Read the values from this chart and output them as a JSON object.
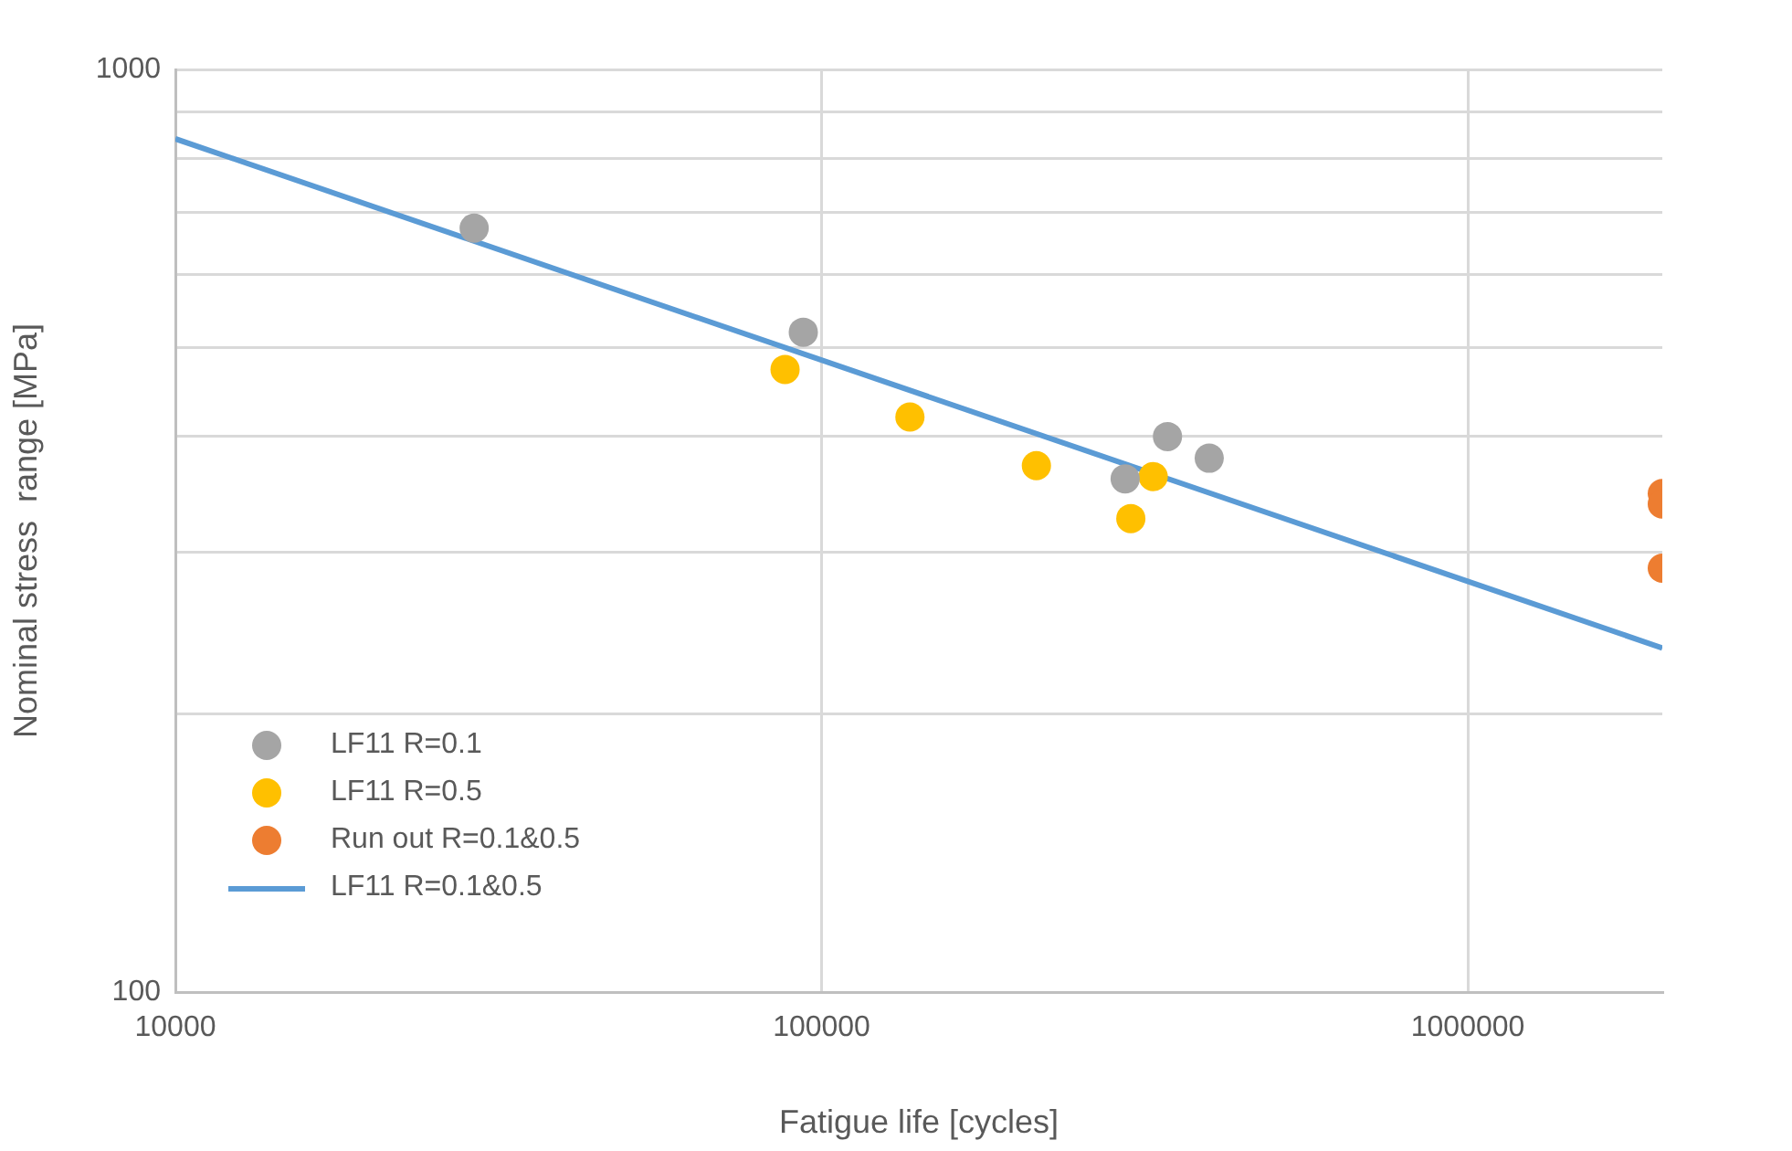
{
  "chart_data": {
    "type": "scatter",
    "xlabel": "Fatigue life [cycles]",
    "ylabel": "Nominal stress  range [MPa]",
    "log": "xy",
    "grid": true,
    "legend": "bottom left",
    "marker": "circle",
    "xlim": [
      10000,
      2000000
    ],
    "xticks": [
      10000,
      100000,
      1000000
    ],
    "ylim": [
      100,
      1000
    ],
    "yticks": [
      100,
      {
        "value": 200,
        "label": null
      },
      {
        "value": 300,
        "label": null
      },
      {
        "value": 400,
        "label": null
      },
      {
        "value": 500,
        "label": null
      },
      {
        "value": 600,
        "label": null
      },
      {
        "value": 700,
        "label": null
      },
      {
        "value": 800,
        "label": null
      },
      {
        "value": 900,
        "label": null
      },
      1000
    ],
    "series": [
      {
        "name": "LF11 R=0.1",
        "color": "#a5a5a5",
        "x": [
          29000,
          93700,
          295000,
          343000,
          398000
        ],
        "values": [
          673,
          519,
          360,
          400,
          379
        ]
      },
      {
        "name": "LF11 R=0.5",
        "color": "#ffc000",
        "x": [
          87800,
          137000,
          215000,
          326000,
          301000
        ],
        "values": [
          473,
          420,
          372,
          362,
          326
        ]
      },
      {
        "name": "Run out R=0.1&0.5",
        "color": "#ed7d31",
        "x": [
          2000000,
          2000000,
          2000000
        ],
        "values": [
          347,
          338,
          288
        ]
      },
      {
        "name": "LF11 R=0.1&0.5",
        "type": "line",
        "marker": "none",
        "line_style": "solid",
        "color": "#5b9bd5",
        "x": [
          10000,
          2000000
        ],
        "values": [
          841,
          236
        ]
      }
    ]
  }
}
